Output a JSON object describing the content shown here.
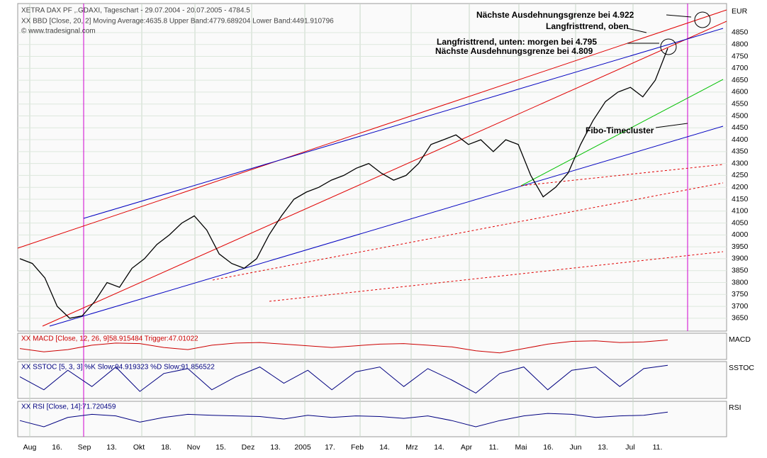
{
  "chart_data": {
    "type": "line",
    "title": "XETRA DAX PF ,.GDAXI, Tageschart - 29.07.2004 - 20.07.2005 - 4784.5",
    "subtitle": "XX BBD [Close, 20, 2] Moving Average:4635.8 Upper Band:4779.689204 Lower Band:4491.910796",
    "source": "© www.tradesignal.com",
    "y_axis_label": "EUR",
    "annotations": [
      "Nächste Ausdehnungsgrenze bei 4.922",
      "Langfristtrend, oben",
      "Langfristtrend, unten: morgen bei 4.795",
      "Nächste Ausdehnungsgrenze bei 4.809",
      "Fibo-Timecluster"
    ],
    "xtick_labels": [
      "Aug",
      "16.",
      "Sep",
      "13.",
      "Okt",
      "18.",
      "Nov",
      "15.",
      "Dez",
      "13.",
      "2005",
      "17.",
      "Feb",
      "14.",
      "Mrz",
      "14.",
      "Apr",
      "11.",
      "Mai",
      "16.",
      "Jun",
      "13.",
      "Jul",
      "11."
    ],
    "series": [
      {
        "name": "XETRA DAX PF",
        "color": "#000000",
        "values": [
          3900,
          3880,
          3820,
          3700,
          3650,
          3660,
          3720,
          3800,
          3780,
          3860,
          3900,
          3960,
          4000,
          4050,
          4080,
          4020,
          3920,
          3880,
          3860,
          3900,
          4000,
          4080,
          4150,
          4180,
          4200,
          4230,
          4250,
          4280,
          4300,
          4260,
          4230,
          4250,
          4300,
          4380,
          4400,
          4420,
          4380,
          4400,
          4350,
          4400,
          4380,
          4250,
          4160,
          4200,
          4260,
          4380,
          4480,
          4560,
          4600,
          4620,
          4580,
          4650,
          4784
        ]
      }
    ],
    "ylim": [
      3596,
      4972
    ],
    "yticks": [
      3650,
      3700,
      3750,
      3800,
      3850,
      3900,
      3950,
      4000,
      4050,
      4100,
      4150,
      4200,
      4250,
      4300,
      4350,
      4400,
      4450,
      4500,
      4550,
      4600,
      4650,
      4700,
      4750,
      4800,
      4850
    ],
    "grid": true,
    "indicators": [
      {
        "name": "MACD",
        "label": "XX MACD [Close, 12, 26, 9]58.915484 Trigger:47.01022",
        "color": "#cc0000",
        "ylim": [
          -100,
          100
        ],
        "values": [
          -20,
          -50,
          -30,
          10,
          30,
          25,
          -10,
          -30,
          10,
          30,
          35,
          20,
          5,
          -10,
          5,
          20,
          25,
          10,
          -5,
          -40,
          -60,
          -20,
          20,
          45,
          50,
          35,
          40,
          58
        ]
      },
      {
        "name": "SSTOC",
        "label": "XX SSTOC [5, 3, 3] %K Slow:94.919323 %D Slow:91.856522",
        "color": "#000080",
        "ylim": [
          0,
          100
        ],
        "values": [
          60,
          20,
          80,
          30,
          90,
          15,
          70,
          85,
          20,
          60,
          90,
          40,
          80,
          20,
          75,
          90,
          30,
          85,
          50,
          10,
          70,
          90,
          20,
          80,
          90,
          30,
          85,
          95
        ]
      },
      {
        "name": "RSI",
        "label": "XX RSI [Close, 14]:71.720459",
        "color": "#000080",
        "ylim": [
          0,
          100
        ],
        "values": [
          45,
          25,
          55,
          65,
          60,
          40,
          55,
          65,
          62,
          60,
          58,
          50,
          62,
          55,
          60,
          58,
          52,
          60,
          45,
          25,
          45,
          60,
          68,
          65,
          55,
          60,
          62,
          72
        ]
      }
    ]
  }
}
